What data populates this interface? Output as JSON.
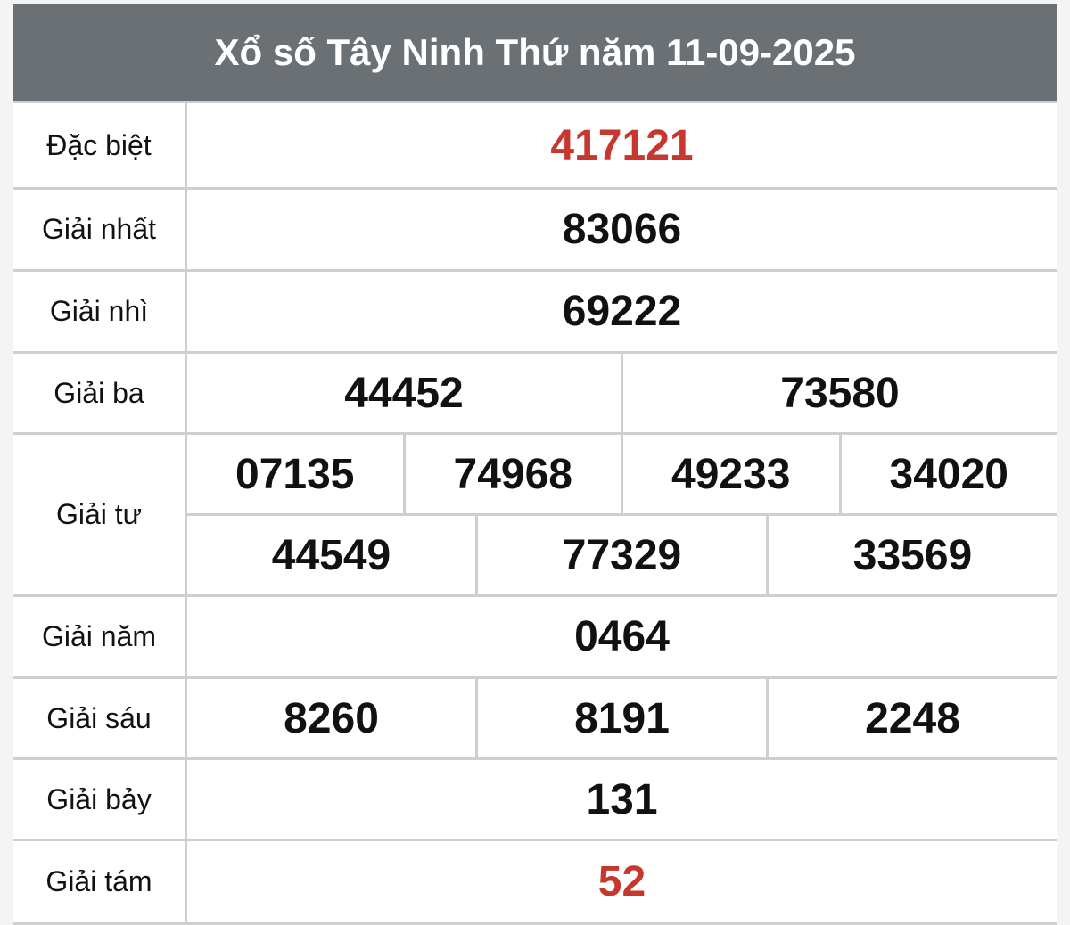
{
  "title": "Xổ số Tây Ninh Thứ năm 11-09-2025",
  "colors": {
    "header_bg": "#6a7074",
    "highlight": "#c8372d"
  },
  "prizes": [
    {
      "label": "Đặc biệt",
      "rows": [
        [
          "417121"
        ]
      ],
      "highlight": true
    },
    {
      "label": "Giải nhất",
      "rows": [
        [
          "83066"
        ]
      ]
    },
    {
      "label": "Giải nhì",
      "rows": [
        [
          "69222"
        ]
      ]
    },
    {
      "label": "Giải ba",
      "rows": [
        [
          "44452",
          "73580"
        ]
      ]
    },
    {
      "label": "Giải tư",
      "rows": [
        [
          "07135",
          "74968",
          "49233",
          "34020"
        ],
        [
          "44549",
          "77329",
          "33569"
        ]
      ]
    },
    {
      "label": "Giải năm",
      "rows": [
        [
          "0464"
        ]
      ]
    },
    {
      "label": "Giải sáu",
      "rows": [
        [
          "8260",
          "8191",
          "2248"
        ]
      ]
    },
    {
      "label": "Giải bảy",
      "rows": [
        [
          "131"
        ]
      ]
    },
    {
      "label": "Giải tám",
      "rows": [
        [
          "52"
        ]
      ],
      "highlight": true
    }
  ]
}
